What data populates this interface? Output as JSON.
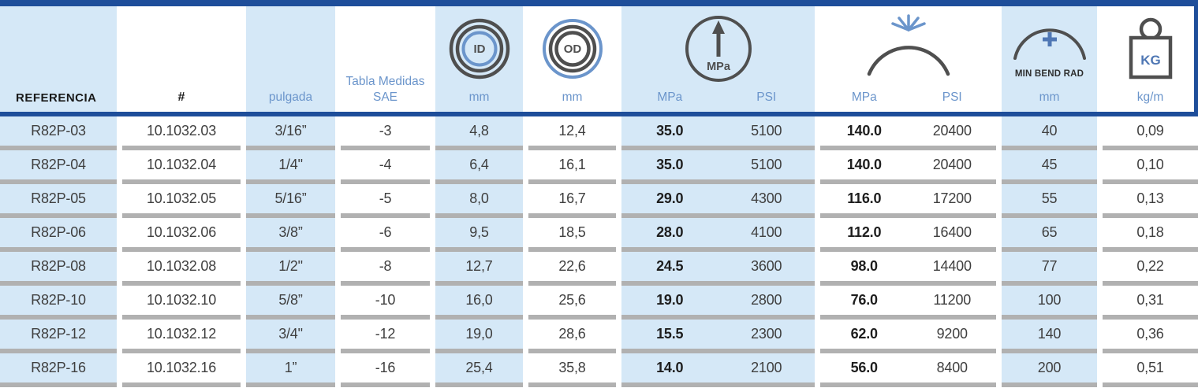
{
  "colors": {
    "navy_border": "#1e4e9a",
    "column_band_blue": "#d5e8f7",
    "header_blue_text": "#6b95cb",
    "icon_accent_blue": "#4f77b4",
    "data_text": "#3f3f3f",
    "row_separator_gray": "#b1b1b1"
  },
  "header": {
    "referencia": "REFERENCIA",
    "hash": "#",
    "pulgada": "pulgada",
    "sae": "Tabla Medidas SAE",
    "id_icon_label": "ID",
    "od_icon_label": "OD",
    "id_unit": "mm",
    "od_unit": "mm",
    "pressure_icon_label": "MPa",
    "wp_mpa_unit": "MPa",
    "wp_psi_unit": "PSI",
    "bp_mpa_unit": "MPa",
    "bp_psi_unit": "PSI",
    "mbr_caption": "MIN BEND RAD",
    "mbr_unit": "mm",
    "kg_icon_label": "KG",
    "kg_unit": "kg/m"
  },
  "table": {
    "rows": [
      {
        "ref": "R82P-03",
        "num": "10.1032.03",
        "pulgada": "3/16”",
        "sae": "-3",
        "id": "4,8",
        "od": "12,4",
        "wp_mpa": "35.0",
        "wp_psi": "5100",
        "bp_mpa": "140.0",
        "bp_psi": "20400",
        "mbr": "40",
        "kg": "0,09"
      },
      {
        "ref": "R82P-04",
        "num": "10.1032.04",
        "pulgada": "1/4\"",
        "sae": "-4",
        "id": "6,4",
        "od": "16,1",
        "wp_mpa": "35.0",
        "wp_psi": "5100",
        "bp_mpa": "140.0",
        "bp_psi": "20400",
        "mbr": "45",
        "kg": "0,10"
      },
      {
        "ref": "R82P-05",
        "num": "10.1032.05",
        "pulgada": "5/16”",
        "sae": "-5",
        "id": "8,0",
        "od": "16,7",
        "wp_mpa": "29.0",
        "wp_psi": "4300",
        "bp_mpa": "116.0",
        "bp_psi": "17200",
        "mbr": "55",
        "kg": "0,13"
      },
      {
        "ref": "R82P-06",
        "num": "10.1032.06",
        "pulgada": "3/8”",
        "sae": "-6",
        "id": "9,5",
        "od": "18,5",
        "wp_mpa": "28.0",
        "wp_psi": "4100",
        "bp_mpa": "112.0",
        "bp_psi": "16400",
        "mbr": "65",
        "kg": "0,18"
      },
      {
        "ref": "R82P-08",
        "num": "10.1032.08",
        "pulgada": "1/2\"",
        "sae": "-8",
        "id": "12,7",
        "od": "22,6",
        "wp_mpa": "24.5",
        "wp_psi": "3600",
        "bp_mpa": "98.0",
        "bp_psi": "14400",
        "mbr": "77",
        "kg": "0,22"
      },
      {
        "ref": "R82P-10",
        "num": "10.1032.10",
        "pulgada": "5/8”",
        "sae": "-10",
        "id": "16,0",
        "od": "25,6",
        "wp_mpa": "19.0",
        "wp_psi": "2800",
        "bp_mpa": "76.0",
        "bp_psi": "11200",
        "mbr": "100",
        "kg": "0,31"
      },
      {
        "ref": "R82P-12",
        "num": "10.1032.12",
        "pulgada": "3/4\"",
        "sae": "-12",
        "id": "19,0",
        "od": "28,6",
        "wp_mpa": "15.5",
        "wp_psi": "2300",
        "bp_mpa": "62.0",
        "bp_psi": "9200",
        "mbr": "140",
        "kg": "0,36"
      },
      {
        "ref": "R82P-16",
        "num": "10.1032.16",
        "pulgada": "1”",
        "sae": "-16",
        "id": "25,4",
        "od": "35,8",
        "wp_mpa": "14.0",
        "wp_psi": "2100",
        "bp_mpa": "56.0",
        "bp_psi": "8400",
        "mbr": "200",
        "kg": "0,51"
      }
    ]
  }
}
